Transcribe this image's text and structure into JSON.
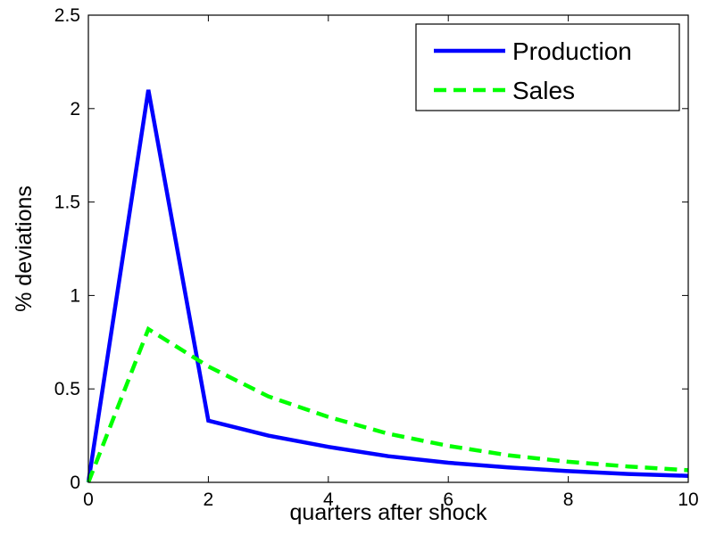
{
  "chart_data": {
    "type": "line",
    "title": "",
    "xlabel": "quarters after shock",
    "ylabel": "% deviations",
    "xlim": [
      0,
      10
    ],
    "ylim": [
      0,
      2.5
    ],
    "xticks": [
      0,
      2,
      4,
      6,
      8,
      10
    ],
    "yticks": [
      0,
      0.5,
      1,
      1.5,
      2,
      2.5
    ],
    "xtick_labels": [
      "0",
      "2",
      "4",
      "6",
      "8",
      "10"
    ],
    "ytick_labels": [
      "0",
      "0.5",
      "1",
      "1.5",
      "2",
      "2.5"
    ],
    "grid": false,
    "legend_position": "top-right",
    "x": [
      0,
      1,
      2,
      3,
      4,
      5,
      6,
      7,
      8,
      9,
      10
    ],
    "series": [
      {
        "name": "Production",
        "color": "#0000ff",
        "style": "solid",
        "values": [
          0.0,
          2.1,
          0.33,
          0.25,
          0.19,
          0.14,
          0.105,
          0.08,
          0.06,
          0.045,
          0.035
        ]
      },
      {
        "name": "Sales",
        "color": "#00ff00",
        "style": "dashed",
        "values": [
          0.0,
          0.82,
          0.62,
          0.46,
          0.35,
          0.26,
          0.195,
          0.145,
          0.11,
          0.085,
          0.065
        ]
      }
    ]
  }
}
